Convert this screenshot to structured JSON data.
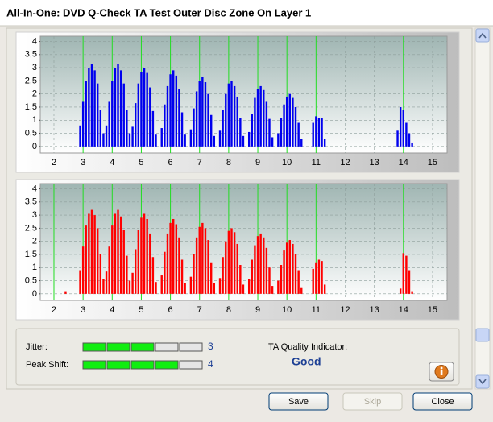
{
  "window": {
    "title": "All-In-One: DVD Q-Check TA Test Outer Disc Zone On Layer 1"
  },
  "chart_data": [
    {
      "type": "bar",
      "color": "#0000ee",
      "x": [
        2.9,
        3.0,
        3.1,
        3.2,
        3.3,
        3.4,
        3.5,
        3.6,
        3.7,
        3.8,
        3.9,
        4.0,
        4.1,
        4.2,
        4.3,
        4.4,
        4.5,
        4.6,
        4.7,
        4.8,
        4.9,
        5.0,
        5.1,
        5.2,
        5.3,
        5.4,
        5.5,
        5.7,
        5.8,
        5.9,
        6.0,
        6.1,
        6.2,
        6.3,
        6.4,
        6.5,
        6.7,
        6.8,
        6.9,
        7.0,
        7.1,
        7.2,
        7.3,
        7.4,
        7.5,
        7.7,
        7.8,
        7.9,
        8.0,
        8.1,
        8.2,
        8.3,
        8.4,
        8.5,
        8.7,
        8.8,
        8.9,
        9.0,
        9.1,
        9.2,
        9.3,
        9.4,
        9.5,
        9.7,
        9.8,
        9.9,
        10.0,
        10.1,
        10.2,
        10.3,
        10.4,
        10.5,
        10.9,
        11.0,
        11.1,
        11.2,
        11.3,
        13.8,
        13.9,
        14.0,
        14.1,
        14.2,
        14.3
      ],
      "values": [
        0.8,
        1.7,
        2.5,
        3.0,
        3.15,
        2.9,
        2.4,
        1.4,
        0.5,
        0.8,
        1.7,
        2.5,
        3.0,
        3.15,
        2.9,
        2.4,
        1.4,
        0.5,
        0.75,
        1.65,
        2.4,
        2.85,
        3.0,
        2.8,
        2.25,
        1.35,
        0.45,
        0.7,
        1.6,
        2.3,
        2.75,
        2.9,
        2.7,
        2.2,
        1.3,
        0.45,
        0.65,
        1.45,
        2.1,
        2.5,
        2.65,
        2.45,
        2.0,
        1.2,
        0.4,
        0.6,
        1.4,
        2.0,
        2.4,
        2.5,
        2.3,
        1.9,
        1.1,
        0.4,
        0.55,
        1.25,
        1.85,
        2.2,
        2.3,
        2.15,
        1.7,
        1.05,
        0.35,
        0.5,
        1.1,
        1.6,
        1.9,
        2.0,
        1.85,
        1.5,
        0.9,
        0.3,
        0.9,
        1.15,
        1.1,
        1.1,
        0.3,
        0.6,
        1.5,
        1.4,
        0.9,
        0.5,
        0.15
      ],
      "xlim": [
        1.53,
        15.5
      ],
      "ylim": [
        -0.25,
        4.2
      ],
      "xticks": [
        2,
        3,
        4,
        5,
        6,
        7,
        8,
        9,
        10,
        11,
        12,
        13,
        14,
        15
      ],
      "yticks": [
        0,
        {
          "value": 0.5,
          "label": "0,5"
        },
        1,
        {
          "value": 1.5,
          "label": "1,5"
        },
        2,
        {
          "value": 2.5,
          "label": "2,5"
        },
        3,
        {
          "value": 3.5,
          "label": "3,5"
        },
        4
      ],
      "grid": true
    },
    {
      "type": "bar",
      "color": "#ff0000",
      "x": [
        2.4,
        2.9,
        3.0,
        3.1,
        3.2,
        3.3,
        3.4,
        3.5,
        3.6,
        3.7,
        3.8,
        3.9,
        4.0,
        4.1,
        4.2,
        4.3,
        4.4,
        4.5,
        4.6,
        4.7,
        4.8,
        4.9,
        5.0,
        5.1,
        5.2,
        5.3,
        5.4,
        5.5,
        5.7,
        5.8,
        5.9,
        6.0,
        6.1,
        6.2,
        6.3,
        6.4,
        6.5,
        6.7,
        6.8,
        6.9,
        7.0,
        7.1,
        7.2,
        7.3,
        7.4,
        7.5,
        7.7,
        7.8,
        7.9,
        8.0,
        8.1,
        8.2,
        8.3,
        8.4,
        8.5,
        8.7,
        8.8,
        8.9,
        9.0,
        9.1,
        9.2,
        9.3,
        9.4,
        9.5,
        9.7,
        9.8,
        9.9,
        10.0,
        10.1,
        10.2,
        10.3,
        10.4,
        10.5,
        10.9,
        11.0,
        11.1,
        11.2,
        11.3,
        13.9,
        14.0,
        14.1,
        14.2,
        14.3
      ],
      "values": [
        0.1,
        0.9,
        1.8,
        2.6,
        3.05,
        3.2,
        3.0,
        2.5,
        1.5,
        0.55,
        0.85,
        1.8,
        2.6,
        3.05,
        3.2,
        2.95,
        2.45,
        1.45,
        0.5,
        0.8,
        1.7,
        2.45,
        2.9,
        3.05,
        2.85,
        2.3,
        1.4,
        0.45,
        0.7,
        1.6,
        2.3,
        2.7,
        2.85,
        2.65,
        2.15,
        1.3,
        0.4,
        0.65,
        1.5,
        2.15,
        2.55,
        2.7,
        2.5,
        2.05,
        1.2,
        0.4,
        0.6,
        1.4,
        2.0,
        2.4,
        2.5,
        2.35,
        1.9,
        1.1,
        0.35,
        0.55,
        1.3,
        1.85,
        2.2,
        2.3,
        2.15,
        1.75,
        1.0,
        0.3,
        0.5,
        1.1,
        1.65,
        1.95,
        2.05,
        1.9,
        1.5,
        0.9,
        0.25,
        0.95,
        1.2,
        1.3,
        1.25,
        0.35,
        0.2,
        1.55,
        1.45,
        0.9,
        0.1
      ],
      "xlim": [
        1.53,
        15.5
      ],
      "ylim": [
        -0.25,
        4.2
      ],
      "xticks": [
        2,
        3,
        4,
        5,
        6,
        7,
        8,
        9,
        10,
        11,
        12,
        13,
        14,
        15
      ],
      "yticks": [
        0,
        {
          "value": 0.5,
          "label": "0,5"
        },
        1,
        {
          "value": 1.5,
          "label": "1,5"
        },
        2,
        {
          "value": 2.5,
          "label": "2,5"
        },
        3,
        {
          "value": 3.5,
          "label": "3,5"
        },
        4
      ],
      "grid": true
    }
  ],
  "panel": {
    "jitter": {
      "label": "Jitter:",
      "value": 3
    },
    "peak_shift": {
      "label": "Peak Shift:",
      "value": 4
    },
    "quality": {
      "label": "TA Quality Indicator:",
      "value": "Good"
    }
  },
  "buttons": [
    "Save",
    "Skip",
    "Close"
  ]
}
